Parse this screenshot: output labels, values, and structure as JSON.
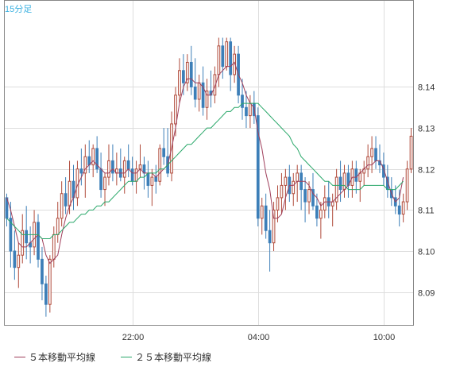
{
  "timeframe_label": "15分足",
  "legend": [
    {
      "label": "５本移動平均線",
      "color": "#a0405c"
    },
    {
      "label": "２５本移動平均線",
      "color": "#2aa86a"
    }
  ],
  "colors": {
    "up_candle": "#b04a3a",
    "down_candle": "#3d7fb8",
    "grid": "#dddddd",
    "axis": "#888888"
  },
  "chart_data": {
    "type": "candlestick",
    "title": "",
    "xlabel": "",
    "ylabel": "",
    "ylim": [
      8.082,
      8.161
    ],
    "yticks": [
      "8.14",
      "8.13",
      "8.12",
      "8.11",
      "8.10",
      "8.09"
    ],
    "ytick_values": [
      8.14,
      8.13,
      8.12,
      8.11,
      8.1,
      8.09
    ],
    "xticks": [
      "22:00",
      "04:00",
      "10:00"
    ],
    "xtick_index": [
      32,
      64,
      96
    ],
    "candles": [
      [
        8.113,
        8.114,
        8.106,
        8.108
      ],
      [
        8.108,
        8.112,
        8.096,
        8.1
      ],
      [
        8.1,
        8.105,
        8.093,
        8.096
      ],
      [
        8.096,
        8.102,
        8.091,
        8.099
      ],
      [
        8.099,
        8.109,
        8.097,
        8.105
      ],
      [
        8.105,
        8.111,
        8.098,
        8.102
      ],
      [
        8.102,
        8.106,
        8.097,
        8.101
      ],
      [
        8.101,
        8.11,
        8.099,
        8.107
      ],
      [
        8.107,
        8.109,
        8.096,
        8.098
      ],
      [
        8.098,
        8.101,
        8.088,
        8.092
      ],
      [
        8.092,
        8.094,
        8.084,
        8.087
      ],
      [
        8.087,
        8.099,
        8.085,
        8.098
      ],
      [
        8.098,
        8.106,
        8.096,
        8.104
      ],
      [
        8.104,
        8.112,
        8.102,
        8.108
      ],
      [
        8.108,
        8.117,
        8.106,
        8.114
      ],
      [
        8.114,
        8.118,
        8.109,
        8.111
      ],
      [
        8.111,
        8.122,
        8.109,
        8.117
      ],
      [
        8.117,
        8.121,
        8.11,
        8.113
      ],
      [
        8.113,
        8.122,
        8.111,
        8.12
      ],
      [
        8.12,
        8.125,
        8.116,
        8.119
      ],
      [
        8.119,
        8.126,
        8.113,
        8.123
      ],
      [
        8.123,
        8.127,
        8.119,
        8.121
      ],
      [
        8.121,
        8.126,
        8.118,
        8.125
      ],
      [
        8.125,
        8.128,
        8.119,
        8.12
      ],
      [
        8.12,
        8.124,
        8.113,
        8.115
      ],
      [
        8.115,
        8.119,
        8.111,
        8.118
      ],
      [
        8.118,
        8.126,
        8.116,
        8.122
      ],
      [
        8.122,
        8.126,
        8.117,
        8.119
      ],
      [
        8.119,
        8.124,
        8.116,
        8.12
      ],
      [
        8.12,
        8.125,
        8.117,
        8.118
      ],
      [
        8.118,
        8.123,
        8.114,
        8.122
      ],
      [
        8.122,
        8.126,
        8.118,
        8.12
      ],
      [
        8.12,
        8.123,
        8.116,
        8.117
      ],
      [
        8.117,
        8.122,
        8.114,
        8.12
      ],
      [
        8.12,
        8.126,
        8.118,
        8.121
      ],
      [
        8.121,
        8.123,
        8.115,
        8.119
      ],
      [
        8.119,
        8.122,
        8.113,
        8.116
      ],
      [
        8.116,
        8.12,
        8.111,
        8.118
      ],
      [
        8.118,
        8.121,
        8.114,
        8.117
      ],
      [
        8.117,
        8.126,
        8.116,
        8.125
      ],
      [
        8.125,
        8.13,
        8.121,
        8.123
      ],
      [
        8.123,
        8.13,
        8.118,
        8.119
      ],
      [
        8.119,
        8.134,
        8.117,
        8.131
      ],
      [
        8.131,
        8.14,
        8.128,
        8.138
      ],
      [
        8.138,
        8.147,
        8.136,
        8.144
      ],
      [
        8.144,
        8.148,
        8.138,
        8.141
      ],
      [
        8.141,
        8.148,
        8.139,
        8.146
      ],
      [
        8.146,
        8.15,
        8.138,
        8.14
      ],
      [
        8.14,
        8.147,
        8.135,
        8.137
      ],
      [
        8.137,
        8.143,
        8.134,
        8.141
      ],
      [
        8.141,
        8.145,
        8.133,
        8.135
      ],
      [
        8.135,
        8.142,
        8.132,
        8.139
      ],
      [
        8.139,
        8.144,
        8.135,
        8.138
      ],
      [
        8.138,
        8.145,
        8.136,
        8.143
      ],
      [
        8.143,
        8.152,
        8.14,
        8.15
      ],
      [
        8.15,
        8.152,
        8.142,
        8.145
      ],
      [
        8.145,
        8.152,
        8.144,
        8.151
      ],
      [
        8.151,
        8.152,
        8.139,
        8.143
      ],
      [
        8.143,
        8.15,
        8.141,
        8.148
      ],
      [
        8.148,
        8.15,
        8.136,
        8.138
      ],
      [
        8.138,
        8.142,
        8.132,
        8.135
      ],
      [
        8.135,
        8.139,
        8.13,
        8.133
      ],
      [
        8.133,
        8.138,
        8.13,
        8.136
      ],
      [
        8.136,
        8.139,
        8.131,
        8.133
      ],
      [
        8.133,
        8.135,
        8.106,
        8.108
      ],
      [
        8.108,
        8.113,
        8.104,
        8.111
      ],
      [
        8.111,
        8.114,
        8.103,
        8.105
      ],
      [
        8.105,
        8.11,
        8.095,
        8.102
      ],
      [
        8.102,
        8.112,
        8.1,
        8.11
      ],
      [
        8.11,
        8.116,
        8.107,
        8.113
      ],
      [
        8.113,
        8.119,
        8.109,
        8.116
      ],
      [
        8.116,
        8.12,
        8.11,
        8.118
      ],
      [
        8.118,
        8.121,
        8.112,
        8.114
      ],
      [
        8.114,
        8.119,
        8.111,
        8.117
      ],
      [
        8.117,
        8.121,
        8.112,
        8.119
      ],
      [
        8.119,
        8.121,
        8.11,
        8.115
      ],
      [
        8.115,
        8.118,
        8.107,
        8.112
      ],
      [
        8.112,
        8.117,
        8.109,
        8.115
      ],
      [
        8.115,
        8.119,
        8.11,
        8.111
      ],
      [
        8.111,
        8.114,
        8.106,
        8.108
      ],
      [
        8.108,
        8.112,
        8.103,
        8.11
      ],
      [
        8.11,
        8.116,
        8.108,
        8.113
      ],
      [
        8.113,
        8.117,
        8.108,
        8.111
      ],
      [
        8.111,
        8.114,
        8.106,
        8.112
      ],
      [
        8.112,
        8.12,
        8.11,
        8.118
      ],
      [
        8.118,
        8.122,
        8.112,
        8.115
      ],
      [
        8.115,
        8.121,
        8.113,
        8.119
      ],
      [
        8.119,
        8.121,
        8.113,
        8.116
      ],
      [
        8.116,
        8.122,
        8.113,
        8.12
      ],
      [
        8.12,
        8.122,
        8.114,
        8.117
      ],
      [
        8.117,
        8.12,
        8.112,
        8.119
      ],
      [
        8.119,
        8.122,
        8.116,
        8.12
      ],
      [
        8.12,
        8.126,
        8.118,
        8.123
      ],
      [
        8.123,
        8.128,
        8.119,
        8.125
      ],
      [
        8.125,
        8.128,
        8.12,
        8.122
      ],
      [
        8.122,
        8.126,
        8.119,
        8.121
      ],
      [
        8.121,
        8.124,
        8.116,
        8.118
      ],
      [
        8.118,
        8.121,
        8.113,
        8.115
      ],
      [
        8.115,
        8.118,
        8.111,
        8.113
      ],
      [
        8.113,
        8.116,
        8.109,
        8.111
      ],
      [
        8.111,
        8.115,
        8.106,
        8.109
      ],
      [
        8.109,
        8.114,
        8.107,
        8.112
      ],
      [
        8.112,
        8.122,
        8.11,
        8.12
      ],
      [
        8.12,
        8.13,
        8.119,
        8.128
      ]
    ],
    "series": [
      {
        "name": "５本移動平均線",
        "values": [
          8.113,
          8.11,
          8.106,
          8.102,
          8.101,
          8.101,
          8.102,
          8.103,
          8.104,
          8.103,
          8.099,
          8.097,
          8.098,
          8.099,
          8.104,
          8.108,
          8.111,
          8.113,
          8.116,
          8.118,
          8.12,
          8.121,
          8.122,
          8.121,
          8.12,
          8.119,
          8.119,
          8.12,
          8.119,
          8.119,
          8.119,
          8.12,
          8.119,
          8.119,
          8.12,
          8.119,
          8.119,
          8.119,
          8.118,
          8.119,
          8.12,
          8.121,
          8.125,
          8.13,
          8.136,
          8.14,
          8.142,
          8.142,
          8.141,
          8.141,
          8.14,
          8.138,
          8.138,
          8.14,
          8.143,
          8.144,
          8.145,
          8.145,
          8.146,
          8.143,
          8.141,
          8.138,
          8.136,
          8.135,
          8.129,
          8.125,
          8.119,
          8.115,
          8.108,
          8.108,
          8.109,
          8.113,
          8.116,
          8.116,
          8.117,
          8.117,
          8.117,
          8.116,
          8.114,
          8.113,
          8.111,
          8.112,
          8.112,
          8.112,
          8.113,
          8.114,
          8.115,
          8.116,
          8.118,
          8.118,
          8.119,
          8.12,
          8.121,
          8.121,
          8.122,
          8.122,
          8.12,
          8.117,
          8.114,
          8.112,
          8.113,
          8.118
        ]
      },
      {
        "name": "２５本移動平均線",
        "values": [
          8.108,
          8.107,
          8.106,
          8.105,
          8.104,
          8.104,
          8.104,
          8.104,
          8.104,
          8.103,
          8.103,
          8.103,
          8.104,
          8.104,
          8.105,
          8.106,
          8.107,
          8.107,
          8.108,
          8.109,
          8.109,
          8.11,
          8.11,
          8.111,
          8.111,
          8.112,
          8.112,
          8.113,
          8.114,
          8.115,
          8.116,
          8.117,
          8.117,
          8.117,
          8.118,
          8.118,
          8.119,
          8.119,
          8.119,
          8.12,
          8.12,
          8.121,
          8.122,
          8.123,
          8.124,
          8.125,
          8.126,
          8.126,
          8.127,
          8.128,
          8.129,
          8.13,
          8.13,
          8.131,
          8.132,
          8.133,
          8.134,
          8.134,
          8.135,
          8.135,
          8.136,
          8.136,
          8.136,
          8.136,
          8.136,
          8.135,
          8.134,
          8.133,
          8.132,
          8.131,
          8.13,
          8.129,
          8.128,
          8.126,
          8.125,
          8.123,
          8.122,
          8.121,
          8.12,
          8.119,
          8.118,
          8.117,
          8.117,
          8.116,
          8.116,
          8.116,
          8.116,
          8.115,
          8.115,
          8.115,
          8.115,
          8.116,
          8.116,
          8.116,
          8.116,
          8.116,
          8.116,
          8.115,
          8.115,
          8.115,
          8.116,
          8.117
        ]
      }
    ]
  }
}
